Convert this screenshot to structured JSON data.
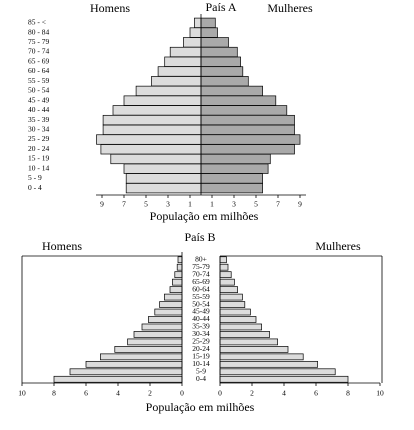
{
  "chart_data": [
    {
      "type": "pyramid",
      "title": "País A",
      "x_label": "População em milhões",
      "categories": [
        "0 - 4",
        "5 - 9",
        "10 - 14",
        "15 - 19",
        "20 - 24",
        "25 - 29",
        "30 - 34",
        "35 - 39",
        "40 - 44",
        "45 - 49",
        "50 - 54",
        "55 - 59",
        "60 - 64",
        "65 - 69",
        "70 - 74",
        "75 - 79",
        "80 - 84",
        "85 - <"
      ],
      "series": [
        {
          "name": "Homens",
          "color": "#dcdcdc",
          "values": [
            6.8,
            6.8,
            7.0,
            8.2,
            9.1,
            9.5,
            8.9,
            8.9,
            8.0,
            7.0,
            5.9,
            4.5,
            3.9,
            3.3,
            2.8,
            1.6,
            1.0,
            0.6
          ]
        },
        {
          "name": "Mulheres",
          "color": "#a9a9a9",
          "values": [
            5.6,
            5.6,
            6.1,
            6.3,
            8.5,
            9.0,
            8.5,
            8.5,
            7.8,
            6.8,
            5.6,
            4.3,
            3.8,
            3.6,
            3.3,
            2.5,
            1.5,
            1.3
          ]
        }
      ],
      "xlim": [
        0,
        10
      ],
      "xticks": [
        1,
        3,
        5,
        7,
        9
      ]
    },
    {
      "type": "pyramid",
      "title": "País B",
      "x_label": "População em milhões",
      "categories": [
        "0-4",
        "5-9",
        "10-14",
        "15-19",
        "20-24",
        "25-29",
        "30-34",
        "35-39",
        "40-44",
        "45-49",
        "50-54",
        "55-59",
        "60-64",
        "65-69",
        "70-74",
        "75-79",
        "80+"
      ],
      "series": [
        {
          "name": "Homens",
          "color": "#dcdcdc",
          "values": [
            8.0,
            7.0,
            6.0,
            5.1,
            4.2,
            3.4,
            3.0,
            2.5,
            2.1,
            1.7,
            1.4,
            1.1,
            0.75,
            0.6,
            0.45,
            0.3,
            0.25
          ]
        },
        {
          "name": "Mulheres",
          "color": "#dcdcdc",
          "values": [
            8.0,
            7.2,
            6.1,
            5.2,
            4.25,
            3.6,
            3.1,
            2.6,
            2.25,
            1.9,
            1.55,
            1.4,
            1.1,
            0.9,
            0.7,
            0.5,
            0.4
          ]
        }
      ],
      "xlim": [
        0,
        10
      ],
      "xticks": [
        0,
        2,
        4,
        6,
        8,
        10
      ]
    }
  ]
}
